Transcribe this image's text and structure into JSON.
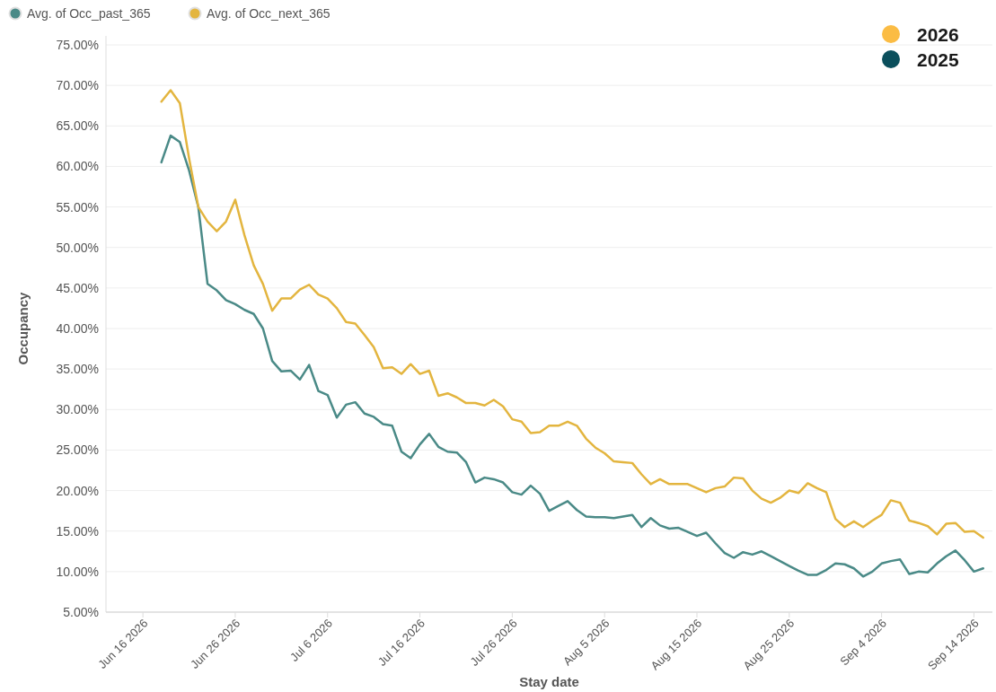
{
  "chart_data": {
    "type": "line",
    "xlabel": "Stay date",
    "ylabel": "Occupancy",
    "x": [
      "2026-06-18",
      "2026-06-19",
      "2026-06-20",
      "2026-06-21",
      "2026-06-22",
      "2026-06-23",
      "2026-06-24",
      "2026-06-25",
      "2026-06-26",
      "2026-06-27",
      "2026-06-28",
      "2026-06-29",
      "2026-06-30",
      "2026-07-01",
      "2026-07-02",
      "2026-07-03",
      "2026-07-04",
      "2026-07-05",
      "2026-07-06",
      "2026-07-07",
      "2026-07-08",
      "2026-07-09",
      "2026-07-10",
      "2026-07-11",
      "2026-07-12",
      "2026-07-13",
      "2026-07-14",
      "2026-07-15",
      "2026-07-16",
      "2026-07-17",
      "2026-07-18",
      "2026-07-19",
      "2026-07-20",
      "2026-07-21",
      "2026-07-22",
      "2026-07-23",
      "2026-07-24",
      "2026-07-25",
      "2026-07-26",
      "2026-07-27",
      "2026-07-28",
      "2026-07-29",
      "2026-07-30",
      "2026-07-31",
      "2026-08-01",
      "2026-08-02",
      "2026-08-03",
      "2026-08-04",
      "2026-08-05",
      "2026-08-06",
      "2026-08-07",
      "2026-08-08",
      "2026-08-09",
      "2026-08-10",
      "2026-08-11",
      "2026-08-12",
      "2026-08-13",
      "2026-08-14",
      "2026-08-15",
      "2026-08-16",
      "2026-08-17",
      "2026-08-18",
      "2026-08-19",
      "2026-08-20",
      "2026-08-21",
      "2026-08-22",
      "2026-08-23",
      "2026-08-24",
      "2026-08-25",
      "2026-08-26",
      "2026-08-27",
      "2026-08-28",
      "2026-08-29",
      "2026-08-30",
      "2026-08-31",
      "2026-09-01",
      "2026-09-02",
      "2026-09-03",
      "2026-09-04",
      "2026-09-05",
      "2026-09-06",
      "2026-09-07",
      "2026-09-08",
      "2026-09-09",
      "2026-09-10",
      "2026-09-11",
      "2026-09-12",
      "2026-09-13",
      "2026-09-14",
      "2026-09-15"
    ],
    "series": [
      {
        "name": "Avg. of Occ_past_365",
        "color": "#4a8a87",
        "values": [
          60.5,
          63.8,
          63.0,
          59.5,
          55.0,
          45.5,
          44.7,
          43.5,
          43.0,
          42.3,
          41.8,
          40.0,
          36.0,
          34.7,
          34.8,
          33.7,
          35.5,
          32.3,
          31.8,
          29.0,
          30.6,
          30.9,
          29.5,
          29.1,
          28.2,
          28.0,
          24.8,
          24.0,
          25.7,
          27.0,
          25.4,
          24.8,
          24.7,
          23.5,
          21.0,
          21.6,
          21.4,
          21.0,
          19.8,
          19.5,
          20.6,
          19.6,
          17.5,
          18.1,
          18.7,
          17.6,
          16.8,
          16.7,
          16.7,
          16.6,
          16.8,
          17.0,
          15.5,
          16.6,
          15.7,
          15.3,
          15.4,
          14.9,
          14.4,
          14.8,
          13.5,
          12.3,
          11.7,
          12.4,
          12.1,
          12.5,
          11.9,
          11.3,
          10.7,
          10.1,
          9.6,
          9.6,
          10.2,
          11.0,
          10.9,
          10.4,
          9.4,
          10.0,
          11.0,
          11.3,
          11.5,
          9.7,
          10.0,
          9.9,
          11.0,
          11.9,
          12.6,
          11.4,
          10.0,
          10.4
        ]
      },
      {
        "name": "Avg. of Occ_next_365",
        "color": "#e3b53f",
        "values": [
          68.0,
          69.4,
          67.8,
          61.0,
          55.0,
          53.2,
          52.0,
          53.2,
          55.9,
          51.5,
          47.8,
          45.5,
          42.2,
          43.7,
          43.7,
          44.8,
          45.4,
          44.2,
          43.7,
          42.5,
          40.8,
          40.6,
          39.2,
          37.7,
          35.1,
          35.2,
          34.4,
          35.6,
          34.4,
          34.8,
          31.7,
          32.0,
          31.5,
          30.8,
          30.8,
          30.5,
          31.2,
          30.4,
          28.8,
          28.5,
          27.1,
          27.2,
          28.0,
          28.0,
          28.5,
          28.0,
          26.4,
          25.3,
          24.6,
          23.6,
          23.5,
          23.4,
          22.0,
          20.8,
          21.4,
          20.8,
          20.8,
          20.8,
          20.3,
          19.8,
          20.3,
          20.5,
          21.6,
          21.5,
          20.0,
          19.0,
          18.5,
          19.1,
          20.0,
          19.7,
          20.9,
          20.3,
          19.8,
          16.5,
          15.5,
          16.2,
          15.5,
          16.3,
          17.0,
          18.8,
          18.5,
          16.3,
          16.0,
          15.6,
          14.6,
          15.9,
          16.0,
          14.9,
          15.0,
          14.2
        ]
      }
    ],
    "xlim": [
      "2026-06-12",
      "2026-09-16"
    ],
    "xticks": [
      {
        "value": "2026-06-16",
        "label": "Jun 16 2026"
      },
      {
        "value": "2026-06-26",
        "label": "Jun 26 2026"
      },
      {
        "value": "2026-07-06",
        "label": "Jul 6 2026"
      },
      {
        "value": "2026-07-16",
        "label": "Jul 16 2026"
      },
      {
        "value": "2026-07-26",
        "label": "Jul 26 2026"
      },
      {
        "value": "2026-08-05",
        "label": "Aug 5 2026"
      },
      {
        "value": "2026-08-15",
        "label": "Aug 15 2026"
      },
      {
        "value": "2026-08-25",
        "label": "Aug 25 2026"
      },
      {
        "value": "2026-09-04",
        "label": "Sep 4 2026"
      },
      {
        "value": "2026-09-14",
        "label": "Sep 14 2026"
      }
    ],
    "ylim": [
      5,
      75
    ],
    "yticks": [
      {
        "value": 5,
        "label": "5.00%"
      },
      {
        "value": 10,
        "label": "10.00%"
      },
      {
        "value": 15,
        "label": "15.00%"
      },
      {
        "value": 20,
        "label": "20.00%"
      },
      {
        "value": 25,
        "label": "25.00%"
      },
      {
        "value": 30,
        "label": "30.00%"
      },
      {
        "value": 35,
        "label": "35.00%"
      },
      {
        "value": 40,
        "label": "40.00%"
      },
      {
        "value": 45,
        "label": "45.00%"
      },
      {
        "value": 50,
        "label": "50.00%"
      },
      {
        "value": 55,
        "label": "55.00%"
      },
      {
        "value": 60,
        "label": "60.00%"
      },
      {
        "value": 65,
        "label": "65.00%"
      },
      {
        "value": 70,
        "label": "70.00%"
      },
      {
        "value": 75,
        "label": "75.00%"
      }
    ],
    "grid": "y",
    "legend": "top left",
    "marker": "none",
    "line_style": "solid",
    "annotations": [
      "2026",
      "2025"
    ]
  }
}
